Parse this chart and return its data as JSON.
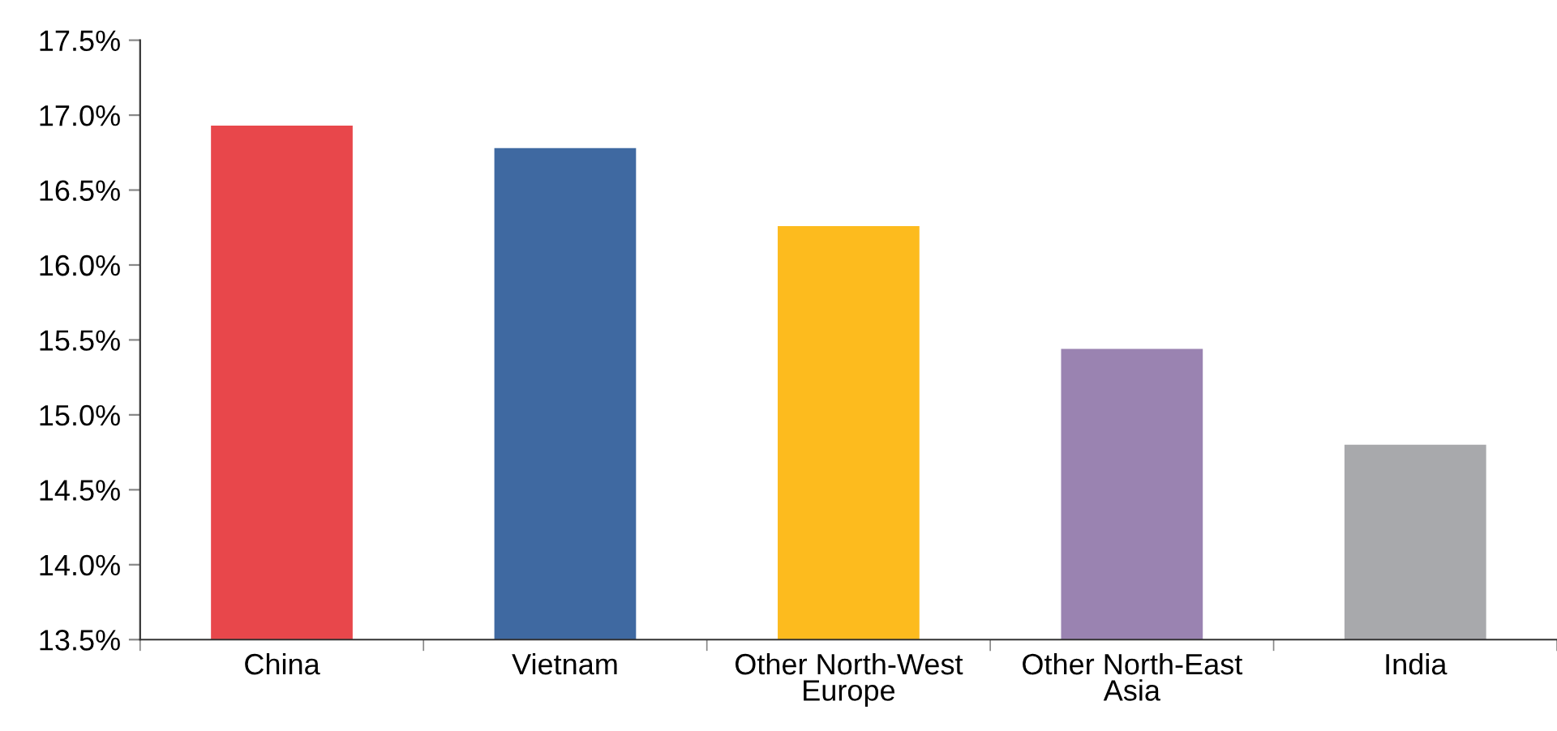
{
  "chart_data": {
    "type": "bar",
    "categories": [
      "China",
      "Vietnam",
      "Other North-West Europe",
      "Other North-East Asia",
      "India"
    ],
    "values": [
      16.93,
      16.78,
      16.26,
      15.44,
      14.8
    ],
    "colors": [
      "#e8474b",
      "#3f69a1",
      "#fdbb1e",
      "#9a83b1",
      "#a8a9ac"
    ],
    "ylim": [
      13.5,
      17.5
    ],
    "yticks": [
      {
        "value": 13.5,
        "label": "13.5%"
      },
      {
        "value": 14.0,
        "label": "14.0%"
      },
      {
        "value": 14.5,
        "label": "14.5%"
      },
      {
        "value": 15.0,
        "label": "15.0%"
      },
      {
        "value": 15.5,
        "label": "15.5%"
      },
      {
        "value": 16.0,
        "label": "16.0%"
      },
      {
        "value": 16.5,
        "label": "16.5%"
      },
      {
        "value": 17.0,
        "label": "17.0%"
      },
      {
        "value": 17.5,
        "label": "17.5%"
      }
    ],
    "grid": false,
    "legend": false
  }
}
